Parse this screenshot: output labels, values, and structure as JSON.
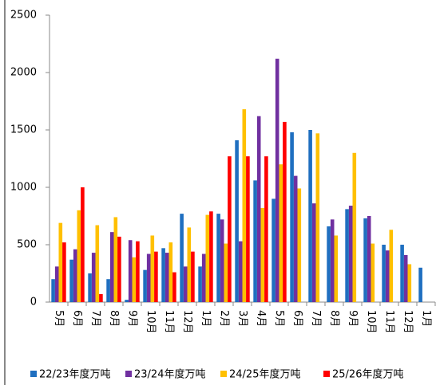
{
  "chart_data": {
    "type": "bar",
    "categories": [
      "5月",
      "6月",
      "7月",
      "8月",
      "9月",
      "10月",
      "11月",
      "12月",
      "1月",
      "2月",
      "3月",
      "4月",
      "5月",
      "6月",
      "7月",
      "8月",
      "9月",
      "10月",
      "11月",
      "12月",
      "1月"
    ],
    "series": [
      {
        "name": "22/23年度万吨",
        "color": "#1f6fc0",
        "values": [
          200,
          370,
          250,
          200,
          20,
          280,
          470,
          770,
          310,
          770,
          1410,
          1060,
          900,
          1480,
          1500,
          660,
          810,
          730,
          500,
          500,
          300
        ]
      },
      {
        "name": "23/24年度万吨",
        "color": "#7030a0",
        "values": [
          310,
          460,
          430,
          610,
          540,
          420,
          430,
          310,
          420,
          720,
          530,
          1620,
          2120,
          1100,
          860,
          720,
          840,
          750,
          450,
          410,
          null
        ]
      },
      {
        "name": "24/25年度万吨",
        "color": "#ffc000",
        "values": [
          690,
          800,
          670,
          740,
          390,
          580,
          520,
          650,
          760,
          510,
          1680,
          820,
          1200,
          990,
          1470,
          580,
          1300,
          510,
          630,
          330,
          null
        ]
      },
      {
        "name": "25/26年度万吨",
        "color": "#ff0000",
        "values": [
          520,
          1000,
          70,
          570,
          530,
          440,
          260,
          440,
          790,
          1270,
          1270,
          1270,
          1570,
          null,
          null,
          null,
          null,
          null,
          null,
          null,
          null
        ]
      }
    ],
    "ylim": [
      0,
      2500
    ],
    "yticks": [
      0,
      500,
      1000,
      1500,
      2000,
      2500
    ],
    "legend": "bottom"
  }
}
